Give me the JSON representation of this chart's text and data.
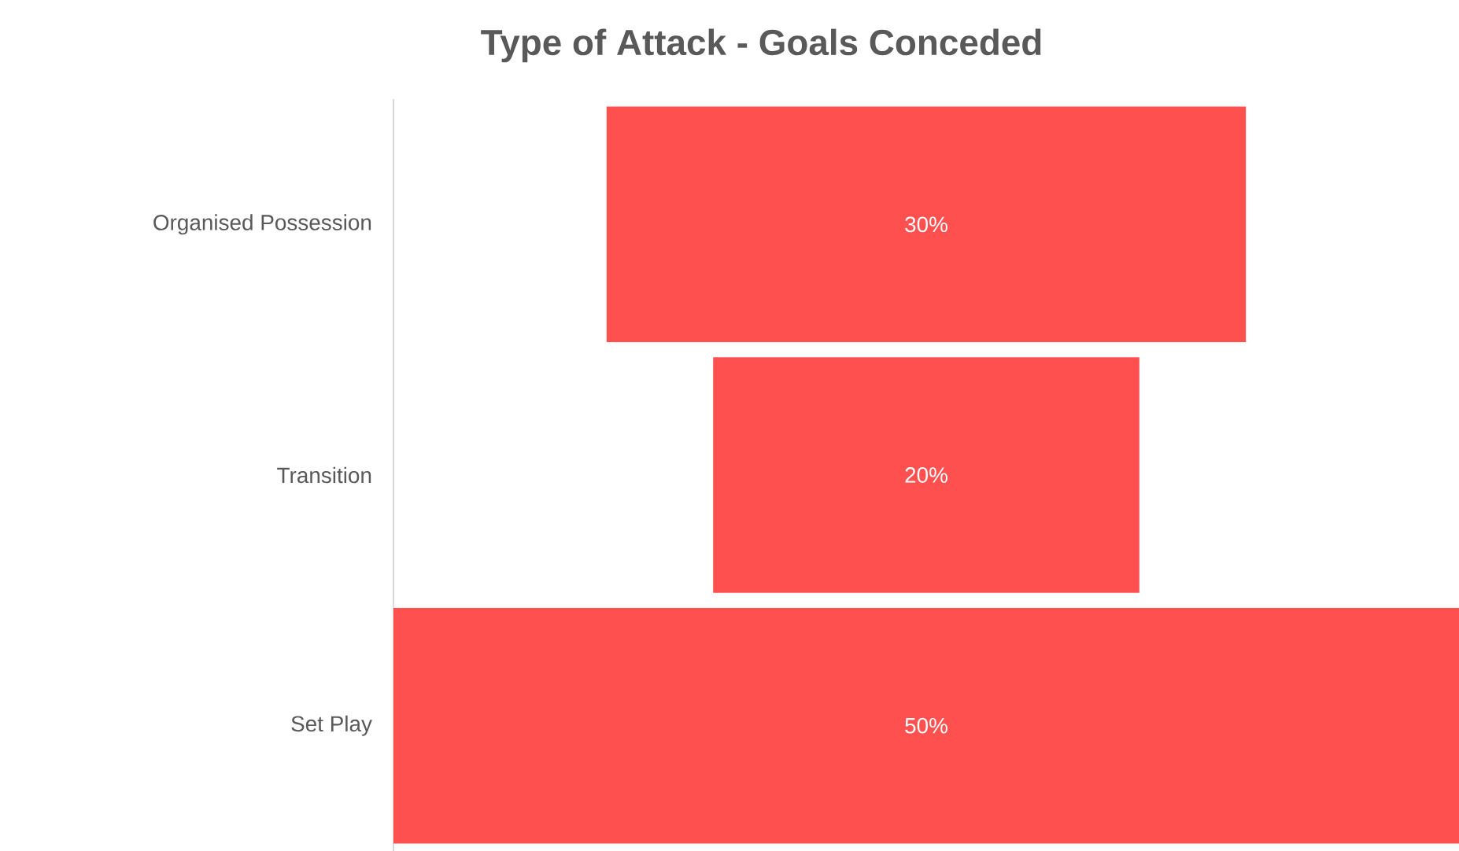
{
  "chart_data": {
    "type": "other",
    "title": "Type of Attack - Goals Conceded",
    "categories": [
      "Organised Possession",
      "Transition",
      "Set Play"
    ],
    "values": [
      30,
      20,
      50
    ],
    "value_labels": [
      "30%",
      "20%",
      "50%"
    ],
    "color": "#ff5050"
  }
}
